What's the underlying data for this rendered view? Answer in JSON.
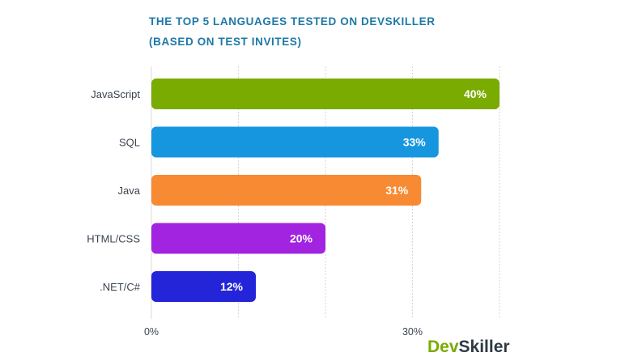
{
  "chart_data": {
    "type": "bar",
    "orientation": "horizontal",
    "title": "THE TOP 5 LANGUAGES TESTED ON DEVSKILLER",
    "subtitle": "(BASED ON TEST INVITES)",
    "categories": [
      "JavaScript",
      "SQL",
      "Java",
      "HTML/CSS",
      ".NET/C#"
    ],
    "values": [
      40,
      33,
      31,
      20,
      12
    ],
    "value_labels": [
      "40%",
      "33%",
      "31%",
      "20%",
      "12%"
    ],
    "bar_colors": [
      "#7aab00",
      "#1796e0",
      "#f78a33",
      "#a324e0",
      "#2424d9"
    ],
    "x_ticks": [
      {
        "value": 0,
        "label": "0%"
      },
      {
        "value": 30,
        "label": "30%"
      }
    ],
    "xlim": [
      0,
      40
    ],
    "grid": "vertical dotted lines every 10%",
    "xlabel": "",
    "ylabel": ""
  },
  "brand": {
    "logo_part1": "Dev",
    "logo_part2": "Skiller",
    "primary_color": "#7aab00",
    "dark_color": "#2d3a45"
  }
}
